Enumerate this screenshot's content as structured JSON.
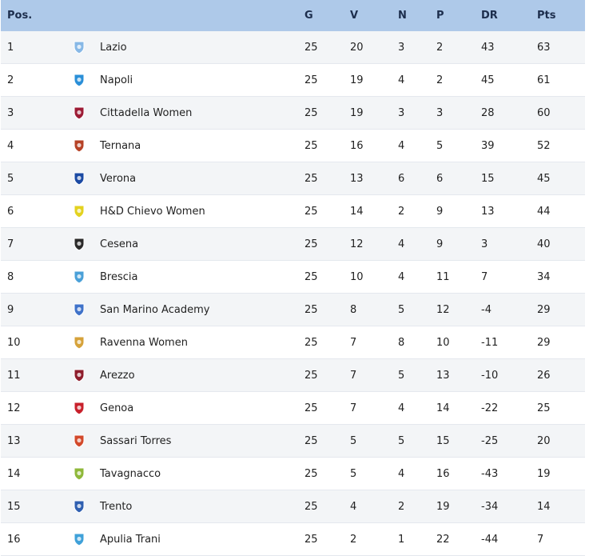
{
  "columns": {
    "pos": "Pos.",
    "g": "G",
    "v": "V",
    "n": "N",
    "p": "P",
    "dr": "DR",
    "pts": "Pts"
  },
  "rows": [
    {
      "pos": "1",
      "team": "Lazio",
      "g": "25",
      "v": "20",
      "n": "3",
      "p": "2",
      "dr": "43",
      "pts": "63",
      "logo": "lazio-crest-icon",
      "color": "#87b8e6"
    },
    {
      "pos": "2",
      "team": "Napoli",
      "g": "25",
      "v": "19",
      "n": "4",
      "p": "2",
      "dr": "45",
      "pts": "61",
      "logo": "napoli-crest-icon",
      "color": "#2a8fd8"
    },
    {
      "pos": "3",
      "team": "Cittadella Women",
      "g": "25",
      "v": "19",
      "n": "3",
      "p": "3",
      "dr": "28",
      "pts": "60",
      "logo": "cittadella-crest-icon",
      "color": "#9c1b35"
    },
    {
      "pos": "4",
      "team": "Ternana",
      "g": "25",
      "v": "16",
      "n": "4",
      "p": "5",
      "dr": "39",
      "pts": "52",
      "logo": "ternana-crest-icon",
      "color": "#b64226"
    },
    {
      "pos": "5",
      "team": "Verona",
      "g": "25",
      "v": "13",
      "n": "6",
      "p": "6",
      "dr": "15",
      "pts": "45",
      "logo": "verona-crest-icon",
      "color": "#1b4aa3"
    },
    {
      "pos": "6",
      "team": "H&D Chievo Women",
      "g": "25",
      "v": "14",
      "n": "2",
      "p": "9",
      "dr": "13",
      "pts": "44",
      "logo": "chievo-crest-icon",
      "color": "#e3d21f"
    },
    {
      "pos": "7",
      "team": "Cesena",
      "g": "25",
      "v": "12",
      "n": "4",
      "p": "9",
      "dr": "3",
      "pts": "40",
      "logo": "cesena-crest-icon",
      "color": "#2a2a2a"
    },
    {
      "pos": "8",
      "team": "Brescia",
      "g": "25",
      "v": "10",
      "n": "4",
      "p": "11",
      "dr": "7",
      "pts": "34",
      "logo": "brescia-crest-icon",
      "color": "#4aa0d8"
    },
    {
      "pos": "9",
      "team": "San Marino Academy",
      "g": "25",
      "v": "8",
      "n": "5",
      "p": "12",
      "dr": "-4",
      "pts": "29",
      "logo": "san-marino-crest-icon",
      "color": "#3f72c9"
    },
    {
      "pos": "10",
      "team": "Ravenna Women",
      "g": "25",
      "v": "7",
      "n": "8",
      "p": "10",
      "dr": "-11",
      "pts": "29",
      "logo": "ravenna-crest-icon",
      "color": "#d6a23a"
    },
    {
      "pos": "11",
      "team": "Arezzo",
      "g": "25",
      "v": "7",
      "n": "5",
      "p": "13",
      "dr": "-10",
      "pts": "26",
      "logo": "arezzo-crest-icon",
      "color": "#8e1d2c"
    },
    {
      "pos": "12",
      "team": "Genoa",
      "g": "25",
      "v": "7",
      "n": "4",
      "p": "14",
      "dr": "-22",
      "pts": "25",
      "logo": "genoa-crest-icon",
      "color": "#c8202b"
    },
    {
      "pos": "13",
      "team": "Sassari Torres",
      "g": "25",
      "v": "5",
      "n": "5",
      "p": "15",
      "dr": "-25",
      "pts": "20",
      "logo": "sassari-torres-crest-icon",
      "color": "#d2492b"
    },
    {
      "pos": "14",
      "team": "Tavagnacco",
      "g": "25",
      "v": "5",
      "n": "4",
      "p": "16",
      "dr": "-43",
      "pts": "19",
      "logo": "tavagnacco-crest-icon",
      "color": "#8fb83a"
    },
    {
      "pos": "15",
      "team": "Trento",
      "g": "25",
      "v": "4",
      "n": "2",
      "p": "19",
      "dr": "-34",
      "pts": "14",
      "logo": "trento-crest-icon",
      "color": "#2f5fb0"
    },
    {
      "pos": "16",
      "team": "Apulia Trani",
      "g": "25",
      "v": "2",
      "n": "1",
      "p": "22",
      "dr": "-44",
      "pts": "7",
      "logo": "apulia-trani-crest-icon",
      "color": "#3fa1d9"
    }
  ]
}
